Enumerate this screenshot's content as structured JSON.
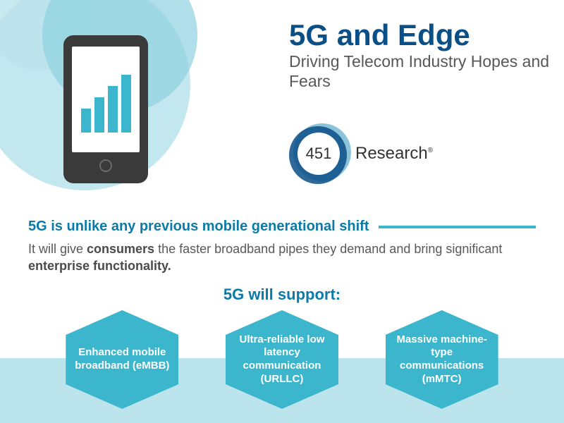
{
  "hero": {
    "title": "5G and Edge",
    "subtitle": "Driving Telecom Industry Hopes and Fears",
    "phone_bars": [
      34,
      50,
      66,
      82
    ],
    "bar_color": "#3bb6cd",
    "circle_colors": [
      "#bce4ec",
      "#8fd1e0",
      "#bce4ec"
    ]
  },
  "logo": {
    "number": "451",
    "text": "Research",
    "circle_colors": [
      "#5aa9c9",
      "#0b4f87"
    ]
  },
  "section": {
    "headline": "5G is unlike any previous mobile generational shift",
    "body_pre": "It will give ",
    "body_b1": "consumers",
    "body_mid": " the faster broadband pipes they demand and bring significant ",
    "body_b2": "enterprise functionality.",
    "line_color": "#3bb6cd"
  },
  "support": {
    "title": "5G will support:",
    "hex_color": "#3bb6cd",
    "band_color": "#bce4ec",
    "items": [
      "Enhanced mobile broadband (eMBB)",
      "Ultra-reliable low latency communication (URLLC)",
      "Massive machine-type communications (mMTC)"
    ]
  },
  "colors": {
    "title": "#0b4f87",
    "subtitle": "#585858",
    "headline": "#0b7aa8",
    "body": "#585858"
  }
}
